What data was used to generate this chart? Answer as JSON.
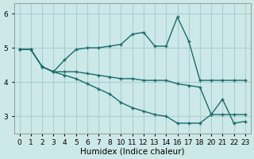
{
  "xlabel": "Humidex (Indice chaleur)",
  "background_color": "#cce8e8",
  "grid_color": "#aacfcf",
  "line_color": "#1a6b6b",
  "yticks": [
    3,
    4,
    5,
    6
  ],
  "xtick_labels": [
    "0",
    "1",
    "2",
    "3",
    "4",
    "5",
    "6",
    "7",
    "8",
    "10",
    "11",
    "12",
    "13",
    "14",
    "16",
    "17",
    "18",
    "20",
    "21",
    "22",
    "23"
  ],
  "line1_y": [
    4.95,
    4.95,
    4.45,
    4.3,
    4.65,
    4.95,
    5.0,
    5.0,
    5.05,
    5.1,
    5.4,
    5.45,
    5.05,
    5.05,
    5.9,
    5.2,
    4.05,
    4.05,
    4.05,
    4.05,
    4.05
  ],
  "line2_y": [
    4.95,
    4.95,
    4.45,
    4.3,
    4.3,
    4.3,
    4.25,
    4.2,
    4.15,
    4.1,
    4.1,
    4.05,
    4.05,
    4.05,
    3.95,
    3.9,
    3.85,
    3.05,
    3.05,
    3.05,
    3.05
  ],
  "line3_y": [
    4.95,
    4.95,
    4.45,
    4.3,
    4.2,
    4.1,
    3.95,
    3.8,
    3.65,
    3.4,
    3.25,
    3.15,
    3.05,
    3.0,
    2.8,
    2.8,
    2.8,
    3.05,
    3.5,
    2.8,
    2.85
  ]
}
